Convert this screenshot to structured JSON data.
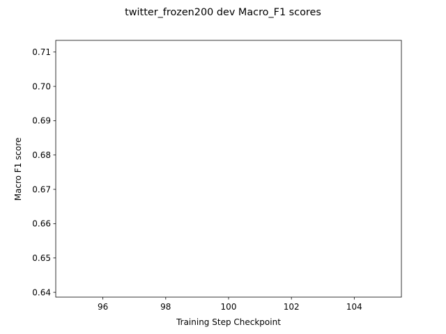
{
  "chart_data": {
    "type": "line",
    "title": "twitter_frozen200 dev Macro_F1 scores",
    "xlabel": "Training Step Checkpoint",
    "ylabel": "Macro F1 score",
    "xlim": [
      94.5,
      105.5
    ],
    "ylim": [
      0.6386,
      0.7134
    ],
    "xticks": [
      96,
      98,
      100,
      102,
      104
    ],
    "yticks": [
      0.64,
      0.65,
      0.66,
      0.67,
      0.68,
      0.69,
      0.7,
      0.71
    ],
    "xtick_labels": [
      "96",
      "98",
      "100",
      "102",
      "104"
    ],
    "ytick_labels": [
      "0.64",
      "0.65",
      "0.66",
      "0.67",
      "0.68",
      "0.69",
      "0.70",
      "0.71"
    ],
    "grid": false,
    "series": []
  }
}
